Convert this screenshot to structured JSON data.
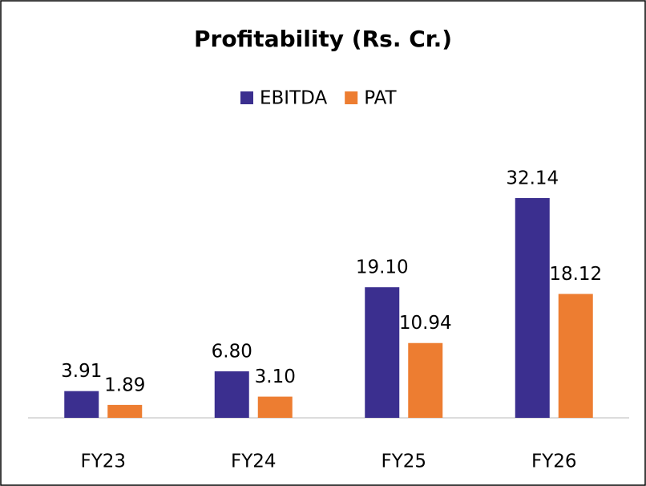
{
  "chart_data": {
    "type": "bar",
    "title": "Profitability (Rs. Cr.)",
    "categories": [
      "FY23",
      "FY24",
      "FY25",
      "FY26"
    ],
    "series": [
      {
        "name": "EBITDA",
        "color": "#3b2f8f",
        "values": [
          3.91,
          6.8,
          19.1,
          32.14
        ],
        "value_labels": [
          "3.91",
          "6.80",
          "19.10",
          "32.14"
        ]
      },
      {
        "name": "PAT",
        "color": "#ed7d31",
        "values": [
          1.89,
          3.1,
          10.94,
          18.12
        ],
        "value_labels": [
          "1.89",
          "3.10",
          "10.94",
          "18.12"
        ]
      }
    ],
    "legend": "top"
  }
}
